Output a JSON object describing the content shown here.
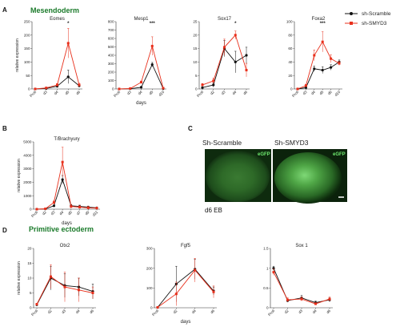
{
  "colors": {
    "scramble": "#111111",
    "smyd3": "#e8301c",
    "section_title": "#1a7a2a",
    "egfp": "#6ee86e",
    "scale_bar": "#ffffff"
  },
  "labels": {
    "panel_a": "A",
    "panel_b": "B",
    "panel_c": "C",
    "panel_d": "D",
    "mesendoderm": "Mesendoderm",
    "primitive_ectoderm": "Primitive ectoderm",
    "legend_scramble": "sh-Scramble",
    "legend_smyd3": "sh-SMYD3",
    "micro_scramble": "Sh-Scramble",
    "micro_smyd3": "Sh-SMYD3",
    "egfp": "eGFP",
    "eb_caption": "d6 EB"
  },
  "chart_data": [
    {
      "type": "line",
      "title": "Eomes",
      "xlabel": "",
      "ylabel": "relative expression",
      "categories": [
        "Proli",
        "d3",
        "d4",
        "d5",
        "d6"
      ],
      "ylim": [
        0,
        250
      ],
      "yticks": [
        0,
        50,
        100,
        150,
        200,
        250
      ],
      "series": [
        {
          "name": "sh-Scramble",
          "values": [
            0,
            2,
            10,
            45,
            12
          ],
          "err": [
            0,
            2,
            4,
            25,
            6
          ]
        },
        {
          "name": "sh-SMYD3",
          "values": [
            0,
            4,
            15,
            170,
            15
          ],
          "err": [
            0,
            2,
            5,
            55,
            6
          ]
        }
      ],
      "annotations": [
        {
          "category": "d5",
          "text": "*"
        }
      ]
    },
    {
      "type": "line",
      "title": "Mesp1",
      "xlabel": "days",
      "ylabel": "",
      "categories": [
        "Proli",
        "d3",
        "d4",
        "d5",
        "d10"
      ],
      "ylim": [
        0,
        800
      ],
      "yticks": [
        0,
        100,
        200,
        300,
        400,
        500,
        600,
        700,
        800
      ],
      "series": [
        {
          "name": "sh-Scramble",
          "values": [
            0,
            3,
            20,
            290,
            5
          ],
          "err": [
            0,
            2,
            5,
            25,
            3
          ]
        },
        {
          "name": "sh-SMYD3",
          "values": [
            0,
            5,
            80,
            510,
            10
          ],
          "err": [
            0,
            3,
            15,
            110,
            4
          ]
        }
      ],
      "annotations": [
        {
          "category": "d5",
          "text": "***"
        }
      ]
    },
    {
      "type": "line",
      "title": "Sox17",
      "xlabel": "",
      "ylabel": "",
      "categories": [
        "Proli",
        "d2",
        "d3",
        "d4",
        "d6"
      ],
      "ylim": [
        0,
        25
      ],
      "yticks": [
        0,
        5,
        10,
        15,
        20,
        25
      ],
      "series": [
        {
          "name": "sh-Scramble",
          "values": [
            0.5,
            1.5,
            15,
            10,
            12.5
          ],
          "err": [
            0.3,
            0.8,
            3,
            4,
            3
          ]
        },
        {
          "name": "sh-SMYD3",
          "values": [
            1.5,
            3,
            15.5,
            20,
            7
          ],
          "err": [
            0.5,
            1,
            3,
            1.5,
            2.5
          ]
        }
      ],
      "annotations": [
        {
          "category": "d4",
          "text": "*"
        }
      ]
    },
    {
      "type": "line",
      "title": "Foxa2",
      "xlabel": "",
      "ylabel": "",
      "categories": [
        "Proli",
        "d3",
        "d4",
        "d5",
        "d6",
        "d10"
      ],
      "ylim": [
        0,
        100
      ],
      "yticks": [
        0,
        20,
        40,
        60,
        80,
        100
      ],
      "series": [
        {
          "name": "sh-Scramble",
          "values": [
            0,
            2,
            30,
            28,
            32,
            40
          ],
          "err": [
            0,
            1,
            4,
            5,
            4,
            3
          ]
        },
        {
          "name": "sh-SMYD3",
          "values": [
            0,
            5,
            50,
            70,
            45,
            38
          ],
          "err": [
            0,
            2,
            8,
            15,
            6,
            3
          ]
        }
      ],
      "annotations": [
        {
          "category": "d5",
          "text": "***"
        }
      ]
    },
    {
      "type": "line",
      "title": "T/Brachyury",
      "xlabel": "days",
      "ylabel": "relative expression",
      "categories": [
        "Proli",
        "d2",
        "d3",
        "d4",
        "d5",
        "d7",
        "d9",
        "d11"
      ],
      "ylim": [
        0,
        5000
      ],
      "yticks": [
        0,
        1000,
        2000,
        3000,
        4000,
        5000
      ],
      "series": [
        {
          "name": "sh-Scramble",
          "values": [
            0,
            20,
            250,
            2200,
            250,
            200,
            150,
            100
          ],
          "err": [
            0,
            10,
            60,
            300,
            100,
            100,
            80,
            60
          ]
        },
        {
          "name": "sh-SMYD3",
          "values": [
            0,
            30,
            500,
            3500,
            200,
            150,
            100,
            80
          ],
          "err": [
            0,
            15,
            150,
            1100,
            150,
            100,
            100,
            60
          ]
        }
      ],
      "annotations": []
    },
    {
      "type": "line",
      "title": "Otx2",
      "xlabel": "",
      "ylabel": "relative expression",
      "categories": [
        "Proli",
        "d2",
        "d3",
        "d4",
        "d6"
      ],
      "ylim": [
        0,
        20
      ],
      "yticks": [
        0,
        5,
        10,
        15,
        20
      ],
      "series": [
        {
          "name": "sh-Scramble",
          "values": [
            1,
            10,
            7.5,
            7,
            5.5
          ],
          "err": [
            0.3,
            4,
            4,
            3,
            2.5
          ]
        },
        {
          "name": "sh-SMYD3",
          "values": [
            1.2,
            10.5,
            7,
            6,
            5
          ],
          "err": [
            0.3,
            4,
            5,
            4,
            2
          ]
        }
      ],
      "annotations": []
    },
    {
      "type": "line",
      "title": "Fgf5",
      "xlabel": "days",
      "ylabel": "",
      "categories": [
        "Proli",
        "d2",
        "d4",
        "d6"
      ],
      "ylim": [
        0,
        300
      ],
      "yticks": [
        0,
        100,
        200,
        300
      ],
      "series": [
        {
          "name": "sh-Scramble",
          "values": [
            2,
            120,
            195,
            85
          ],
          "err": [
            1,
            90,
            50,
            20
          ]
        },
        {
          "name": "sh-SMYD3",
          "values": [
            2,
            70,
            190,
            80
          ],
          "err": [
            1,
            60,
            60,
            30
          ]
        }
      ],
      "annotations": []
    },
    {
      "type": "line",
      "title": "Sox 1",
      "xlabel": "",
      "ylabel": "",
      "categories": [
        "Proli",
        "d2",
        "d3",
        "d4",
        "d6"
      ],
      "ylim": [
        0,
        1.5
      ],
      "yticks": [
        0,
        0.5,
        1.0,
        1.5
      ],
      "series": [
        {
          "name": "sh-Scramble",
          "values": [
            1.0,
            0.18,
            0.25,
            0.13,
            0.2
          ],
          "err": [
            0.05,
            0.04,
            0.06,
            0.04,
            0.05
          ]
        },
        {
          "name": "sh-SMYD3",
          "values": [
            0.9,
            0.2,
            0.22,
            0.1,
            0.22
          ],
          "err": [
            0.08,
            0.05,
            0.05,
            0.03,
            0.05
          ]
        }
      ],
      "annotations": []
    }
  ]
}
